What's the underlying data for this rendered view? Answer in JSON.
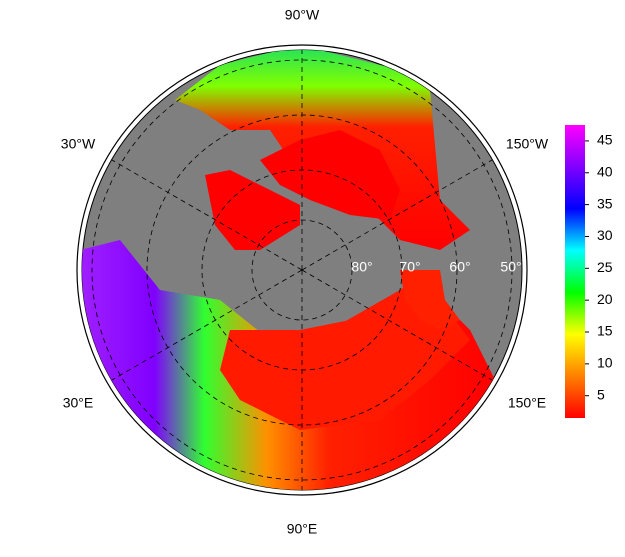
{
  "map": {
    "lon_labels": [
      "90°W",
      "150°W",
      "30°W",
      "30°E",
      "150°E",
      "90°E"
    ],
    "lat_labels": [
      "80°",
      "70°",
      "60°",
      "50°"
    ]
  },
  "colorbar": {
    "lim": [
      1.5,
      47.5
    ],
    "ticks": [
      5,
      10,
      15,
      20,
      25,
      30,
      35,
      40,
      45
    ],
    "colors": [
      "#ff0000",
      "#ff8000",
      "#ffff00",
      "#00ff00",
      "#00ffff",
      "#0000ff",
      "#8000ff",
      "#ff00ff"
    ]
  }
}
